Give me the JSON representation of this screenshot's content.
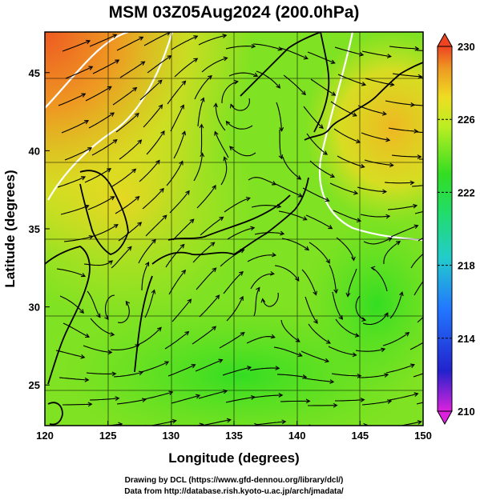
{
  "title": "MSM 03Z05Aug2024 (200.0hPa)",
  "xlabel": "Longitude (degrees)",
  "ylabel": "Latitude  (degrees)",
  "x_ticks": [
    "120",
    "125",
    "130",
    "135",
    "140",
    "145",
    "150"
  ],
  "y_ticks": [
    "25",
    "30",
    "35",
    "40",
    "45"
  ],
  "xlim": [
    120,
    150
  ],
  "ylim": [
    22.4,
    47.6
  ],
  "colorbar": {
    "min": 210,
    "max": 230,
    "ticks": [
      "230",
      "226",
      "222",
      "218",
      "214",
      "210"
    ],
    "colors": [
      "#dd22dd",
      "#2222cc",
      "#2277ff",
      "#22cccc",
      "#22dd66",
      "#33dd22",
      "#bbee22",
      "#eedd22",
      "#ee9922",
      "#ee4422"
    ]
  },
  "credits": {
    "line1": "Drawing by DCL (https://www.gfd-dennou.org/library/dcl/)",
    "line2": "Data from http://database.rish.kyoto-u.ac.jp/arch/jmadata/"
  },
  "map_colors": {
    "field_low": "#33dd22",
    "field_mid": "#99e622",
    "field_high": "#eedd22",
    "field_hot": "#ee7a22",
    "contour": "#ffffff",
    "streamline": "#000000",
    "coast": "#000000"
  }
}
